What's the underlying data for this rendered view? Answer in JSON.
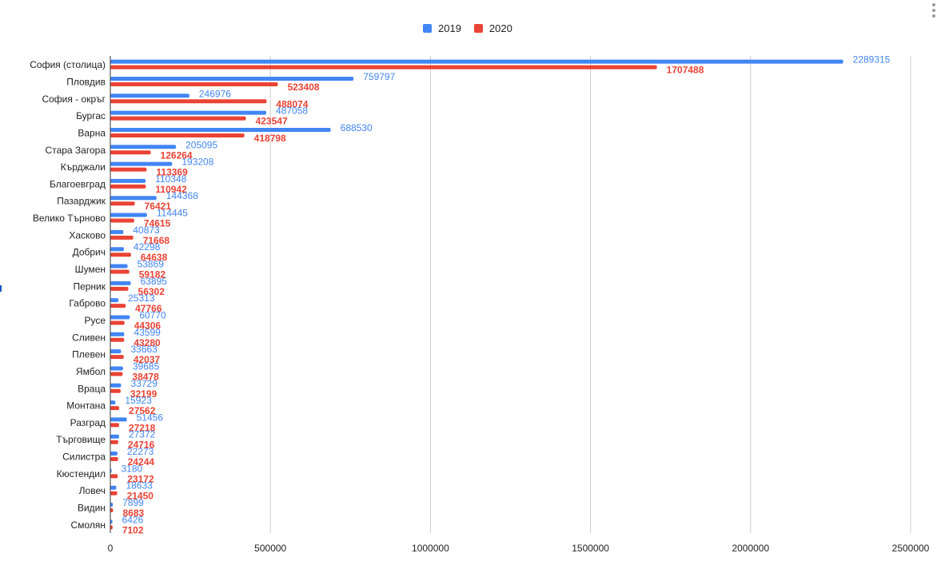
{
  "colors": {
    "s2019": "#4285f4",
    "s2020": "#ea4335",
    "grid": "#cccccc",
    "axis": "#333333",
    "label": "#222222"
  },
  "legend": [
    {
      "name": "2019",
      "color": "#4285f4"
    },
    {
      "name": "2020",
      "color": "#ea4335"
    }
  ],
  "chart_data": {
    "type": "bar",
    "orientation": "horizontal",
    "xlim": [
      0,
      2500000
    ],
    "xticks": [
      "0",
      "500000",
      "1000000",
      "1500000",
      "2000000",
      "2500000"
    ],
    "grid": true,
    "legend_position": "top",
    "categories": [
      "София (столица)",
      "Пловдив",
      "София - окръг",
      "Бургас",
      "Варна",
      "Стара Загора",
      "Кърджали",
      "Благоевград",
      "Пазарджик",
      "Велико Търново",
      "Хасково",
      "Добрич",
      "Шумен",
      "Перник",
      "Габрово",
      "Русе",
      "Сливен",
      "Плевен",
      "Ямбол",
      "Враца",
      "Монтана",
      "Разград",
      "Търговище",
      "Силистра",
      "Кюстендил",
      "Ловеч",
      "Видин",
      "Смолян"
    ],
    "series": [
      {
        "name": "2019",
        "values": [
          2289315,
          759797,
          246976,
          487058,
          688530,
          205095,
          193208,
          110348,
          144368,
          114445,
          40873,
          42298,
          53869,
          63895,
          25313,
          60770,
          43599,
          33663,
          39685,
          33729,
          15923,
          51456,
          27372,
          22273,
          3180,
          18633,
          7899,
          6426
        ]
      },
      {
        "name": "2020",
        "values": [
          1707488,
          523408,
          488074,
          423547,
          418798,
          126264,
          113369,
          110942,
          76421,
          74615,
          71668,
          64638,
          59182,
          56302,
          47766,
          44306,
          43280,
          42037,
          38478,
          32199,
          27562,
          27218,
          24716,
          24244,
          23172,
          21450,
          8683,
          7102
        ]
      }
    ]
  }
}
